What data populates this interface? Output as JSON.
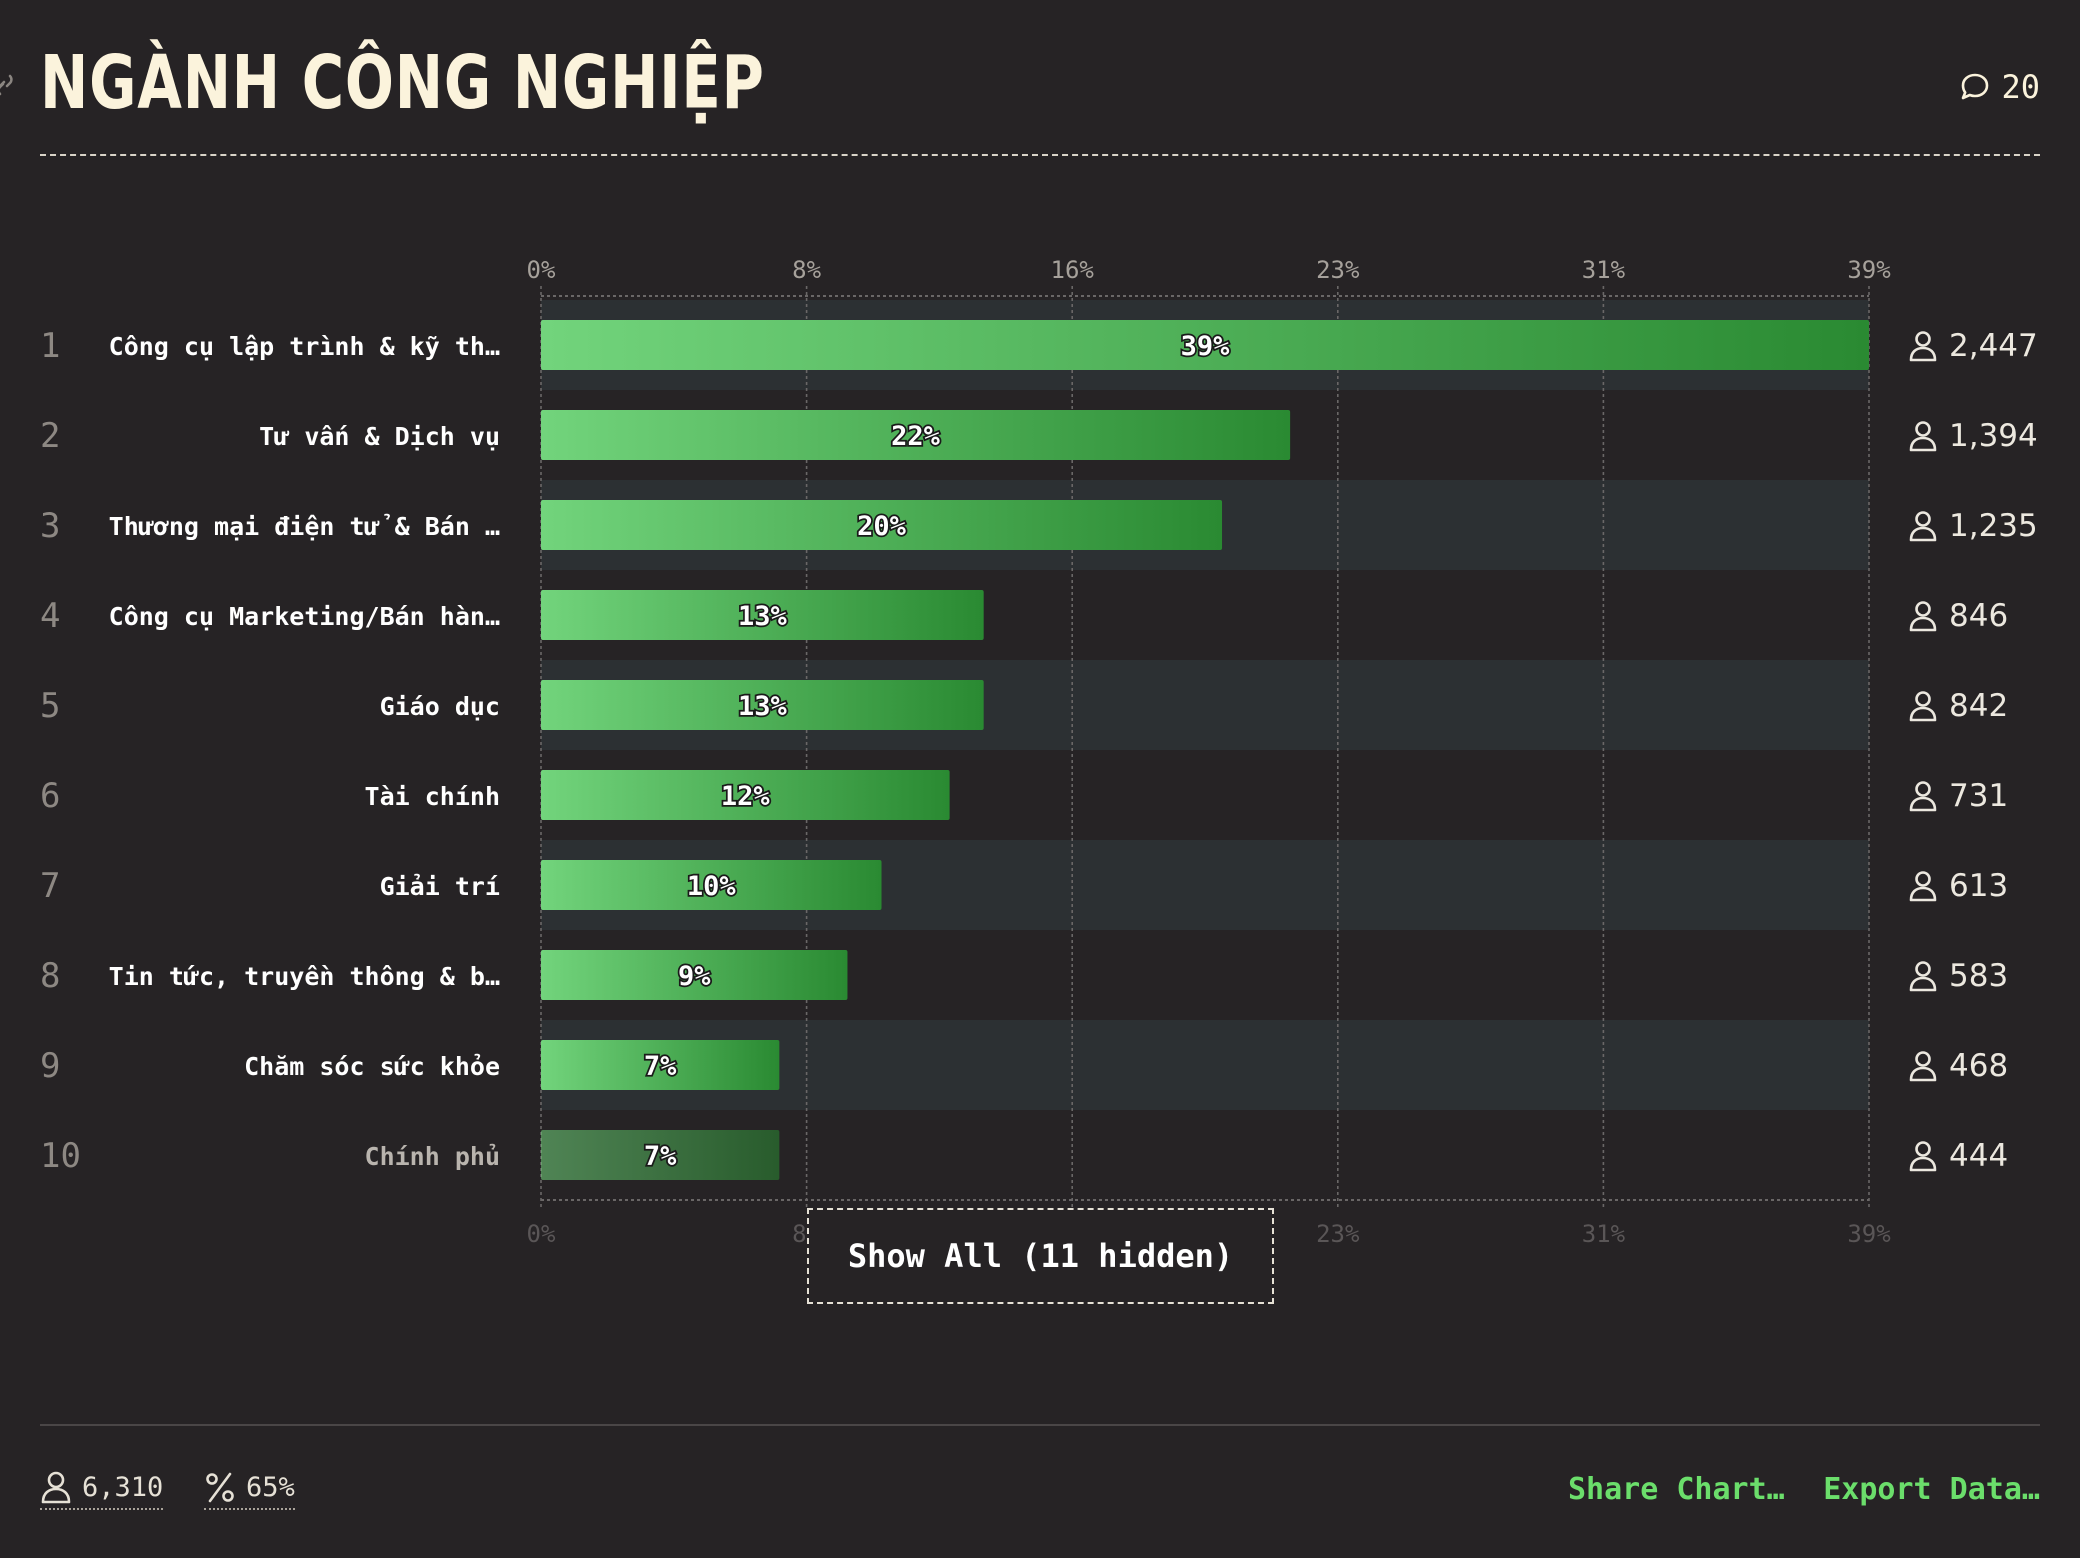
{
  "header": {
    "title": "NGÀNH CÔNG NGHIỆP",
    "comment_count": "20"
  },
  "chart_data": {
    "type": "bar",
    "orientation": "horizontal",
    "title": "NGÀNH CÔNG NGHIỆP",
    "axis_ticks": [
      "0%",
      "8%",
      "16%",
      "23%",
      "31%",
      "39%"
    ],
    "xlim": [
      0,
      39
    ],
    "grid": true,
    "ranks": [
      "1",
      "2",
      "3",
      "4",
      "5",
      "6",
      "7",
      "8",
      "9",
      "10"
    ],
    "categories": [
      "Công cụ lập trình & kỹ th…",
      "Tư vấn & Dịch vụ",
      "Thương mại điện tử & Bán …",
      "Công cụ Marketing/Bán hàn…",
      "Giáo dục",
      "Tài chính",
      "Giải trí",
      "Tin tức, truyền thông & b…",
      "Chăm sóc sức khỏe",
      "Chính phủ"
    ],
    "values": [
      39,
      22,
      20,
      13,
      13,
      12,
      10,
      9,
      7,
      7
    ],
    "value_labels": [
      "39%",
      "22%",
      "20%",
      "13%",
      "13%",
      "12%",
      "10%",
      "9%",
      "7%",
      "7%"
    ],
    "counts": [
      "2,447",
      "1,394",
      "1,235",
      "846",
      "842",
      "731",
      "613",
      "583",
      "468",
      "444"
    ],
    "colors": {
      "bar_start": "#72d47c",
      "bar_end": "#2a8a32",
      "row_band": "#2c3033",
      "grid": "#6a6767"
    }
  },
  "show_all_label": "Show All (11 hidden)",
  "footer": {
    "total_users": "6,310",
    "percent": "65%",
    "share_label": "Share Chart…",
    "export_label": "Export Data…",
    "accent": "#6bde6b"
  }
}
